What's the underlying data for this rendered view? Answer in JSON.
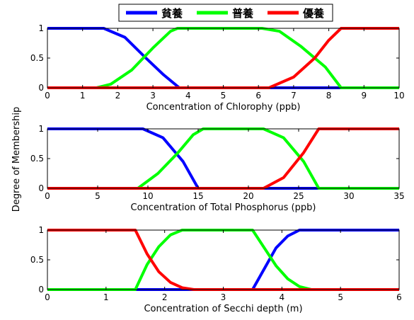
{
  "chart_data": {
    "type": "line",
    "ylabel": "Degree of Membership",
    "legend": {
      "placement": "top-center",
      "entries": [
        {
          "label": "貧養",
          "color": "#0000ff"
        },
        {
          "label": "普養",
          "color": "#00ff00"
        },
        {
          "label": "優養",
          "color": "#ff0000"
        }
      ]
    },
    "grid": false,
    "panels": [
      {
        "xlabel": "Concentration of Chlorophy (ppb)",
        "xlim": [
          0,
          10
        ],
        "ylim": [
          0,
          1
        ],
        "xticks": [
          0,
          1,
          2,
          3,
          4,
          5,
          6,
          7,
          8,
          9,
          10
        ],
        "yticks": [
          0,
          0.5,
          1
        ],
        "yticklabels": [
          "0",
          "0.5",
          "1"
        ],
        "series": [
          {
            "color": "#0000ff",
            "x": [
              0,
              1.6,
              2.2,
              2.8,
              3.3,
              3.75,
              10
            ],
            "y": [
              1,
              1,
              0.85,
              0.5,
              0.22,
              0,
              0
            ]
          },
          {
            "color": "#00ff00",
            "x": [
              0,
              1.4,
              1.8,
              2.4,
              3.0,
              3.5,
              3.7,
              6.1,
              6.6,
              7.2,
              7.9,
              8.35,
              10
            ],
            "y": [
              0,
              0,
              0.06,
              0.3,
              0.67,
              0.95,
              1,
              1,
              0.95,
              0.7,
              0.35,
              0,
              0
            ]
          },
          {
            "color": "#ff0000",
            "x": [
              0,
              6.3,
              7.0,
              7.6,
              8.0,
              8.35,
              10
            ],
            "y": [
              0,
              0,
              0.18,
              0.5,
              0.8,
              1,
              1
            ]
          }
        ]
      },
      {
        "xlabel": "Concentration of Total Phosphorus (ppb)",
        "xlim": [
          0,
          35
        ],
        "ylim": [
          0,
          1
        ],
        "xticks": [
          0,
          5,
          10,
          15,
          20,
          25,
          30,
          35
        ],
        "yticks": [
          0,
          0.5,
          1
        ],
        "yticklabels": [
          "0",
          "0.5",
          "1"
        ],
        "series": [
          {
            "color": "#0000ff",
            "x": [
              0,
              9.5,
              11.5,
              13.5,
              15,
              35
            ],
            "y": [
              1,
              1,
              0.85,
              0.45,
              0,
              0
            ]
          },
          {
            "color": "#00ff00",
            "x": [
              0,
              9,
              11,
              13,
              14.5,
              15.5,
              21.5,
              23.5,
              25.5,
              27,
              35
            ],
            "y": [
              0,
              0,
              0.25,
              0.6,
              0.9,
              1,
              1,
              0.85,
              0.45,
              0,
              0
            ]
          },
          {
            "color": "#ff0000",
            "x": [
              0,
              21.5,
              23.5,
              25.5,
              27,
              35
            ],
            "y": [
              0,
              0,
              0.18,
              0.6,
              1,
              1
            ]
          }
        ]
      },
      {
        "xlabel": "Concentration of Secchi depth (m)",
        "xlim": [
          0,
          6
        ],
        "ylim": [
          0,
          1
        ],
        "xticks": [
          0,
          1,
          2,
          3,
          4,
          5,
          6
        ],
        "yticks": [
          0,
          0.5,
          1
        ],
        "yticklabels": [
          "0",
          "0.5",
          "1"
        ],
        "series": [
          {
            "color": "#0000ff",
            "x": [
              0,
              3.5,
              3.7,
              3.9,
              4.1,
              4.3,
              6
            ],
            "y": [
              0,
              0,
              0.35,
              0.7,
              0.9,
              1,
              1
            ]
          },
          {
            "color": "#00ff00",
            "x": [
              0,
              1.5,
              1.7,
              1.9,
              2.1,
              2.3,
              3.5,
              3.7,
              3.9,
              4.1,
              4.3,
              4.5,
              6
            ],
            "y": [
              0,
              0,
              0.42,
              0.72,
              0.92,
              1,
              1,
              0.7,
              0.4,
              0.18,
              0.05,
              0,
              0
            ]
          },
          {
            "color": "#ff0000",
            "x": [
              0,
              1.5,
              1.7,
              1.9,
              2.1,
              2.3,
              2.5,
              6
            ],
            "y": [
              1,
              1,
              0.6,
              0.3,
              0.12,
              0.03,
              0,
              0
            ]
          }
        ]
      }
    ]
  }
}
